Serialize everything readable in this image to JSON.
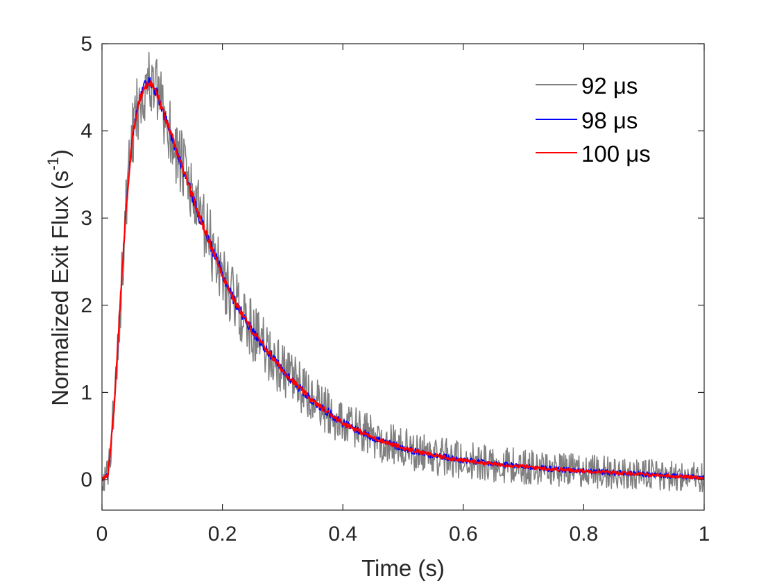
{
  "chart_data": {
    "type": "line",
    "xlabel": "Time (s)",
    "ylabel_main": "Normalized Exit Flux (s",
    "ylabel_sup": "-1",
    "ylabel_close": ")",
    "xlim": [
      0,
      1
    ],
    "ylim": [
      -0.35,
      5
    ],
    "xticks": [
      0,
      0.2,
      0.4,
      0.6,
      0.8,
      1
    ],
    "xtick_labels": [
      "0",
      "0.2",
      "0.4",
      "0.6",
      "0.8",
      "1"
    ],
    "yticks": [
      0,
      1,
      2,
      3,
      4,
      5
    ],
    "ytick_labels": [
      "0",
      "1",
      "2",
      "3",
      "4",
      "5"
    ],
    "grid": false,
    "legend_position": "top-right",
    "x": [
      0,
      0.01,
      0.02,
      0.03,
      0.04,
      0.05,
      0.06,
      0.07,
      0.08,
      0.09,
      0.1,
      0.12,
      0.14,
      0.16,
      0.18,
      0.2,
      0.22,
      0.25,
      0.3,
      0.35,
      0.4,
      0.45,
      0.5,
      0.55,
      0.6,
      0.65,
      0.7,
      0.75,
      0.8,
      0.85,
      0.9,
      0.95,
      1.0
    ],
    "series": [
      {
        "name": "92 μs",
        "color": "#808080",
        "noise": 0.4,
        "values": [
          0,
          0.05,
          0.8,
          2.0,
          3.1,
          3.9,
          4.3,
          4.5,
          4.55,
          4.45,
          4.25,
          3.85,
          3.45,
          3.05,
          2.7,
          2.35,
          2.05,
          1.7,
          1.25,
          0.9,
          0.65,
          0.48,
          0.36,
          0.28,
          0.22,
          0.18,
          0.15,
          0.12,
          0.1,
          0.08,
          0.06,
          0.04,
          0.02
        ]
      },
      {
        "name": "98 μs",
        "color": "#0000ff",
        "noise": 0.07,
        "values": [
          0,
          0.05,
          0.8,
          2.0,
          3.1,
          3.9,
          4.3,
          4.5,
          4.55,
          4.45,
          4.25,
          3.85,
          3.45,
          3.05,
          2.7,
          2.35,
          2.05,
          1.7,
          1.25,
          0.9,
          0.65,
          0.48,
          0.36,
          0.28,
          0.22,
          0.18,
          0.15,
          0.12,
          0.1,
          0.08,
          0.06,
          0.04,
          0.02
        ]
      },
      {
        "name": "100 μs",
        "color": "#ff0000",
        "noise": 0.04,
        "values": [
          0,
          0.05,
          0.8,
          2.0,
          3.1,
          3.9,
          4.3,
          4.5,
          4.55,
          4.45,
          4.25,
          3.85,
          3.45,
          3.05,
          2.7,
          2.35,
          2.05,
          1.7,
          1.25,
          0.9,
          0.65,
          0.48,
          0.36,
          0.28,
          0.22,
          0.18,
          0.15,
          0.12,
          0.1,
          0.08,
          0.06,
          0.04,
          0.02
        ]
      }
    ]
  }
}
